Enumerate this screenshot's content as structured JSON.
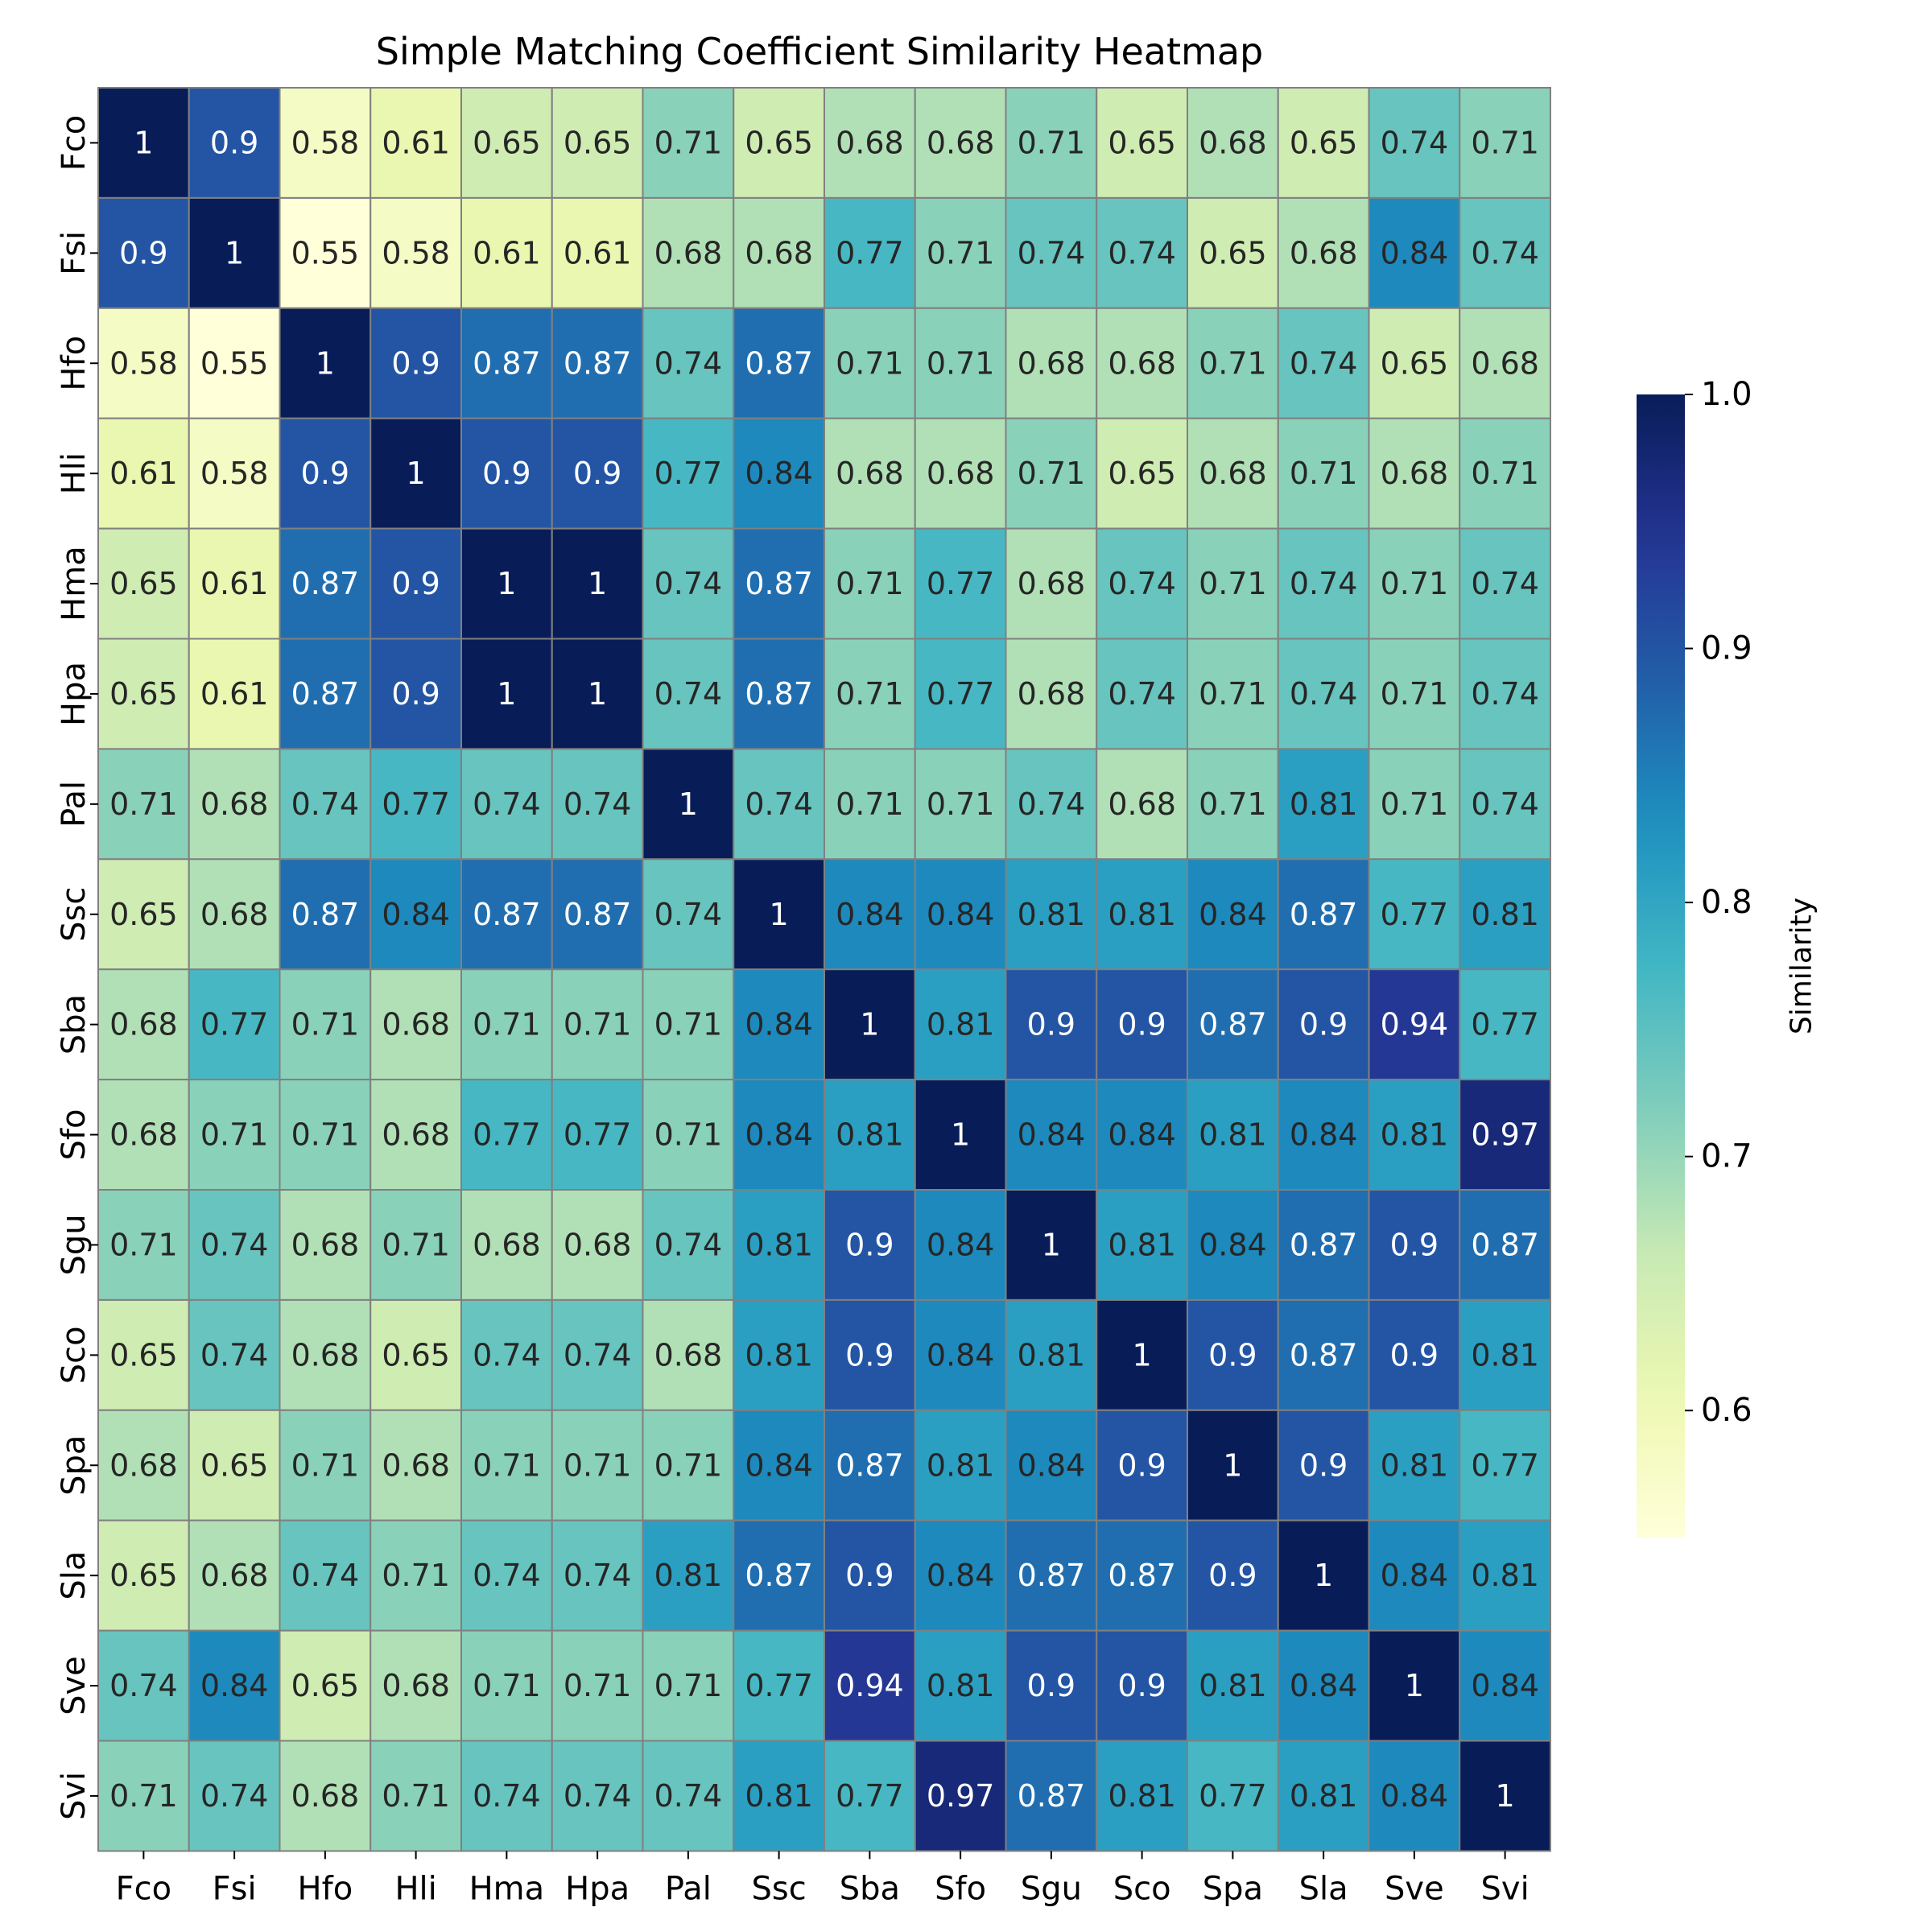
{
  "chart_data": {
    "type": "heatmap",
    "title": "Simple Matching Coefficient Similarity Heatmap",
    "xlabel": "",
    "ylabel": "",
    "x_categories": [
      "Fco",
      "Fsi",
      "Hfo",
      "Hli",
      "Hma",
      "Hpa",
      "Pal",
      "Ssc",
      "Sba",
      "Sfo",
      "Sgu",
      "Sco",
      "Spa",
      "Sla",
      "Sve",
      "Svi"
    ],
    "y_categories": [
      "Fco",
      "Fsi",
      "Hfo",
      "Hli",
      "Hma",
      "Hpa",
      "Pal",
      "Ssc",
      "Sba",
      "Sfo",
      "Sgu",
      "Sco",
      "Spa",
      "Sla",
      "Sve",
      "Svi"
    ],
    "values": [
      [
        1,
        0.9,
        0.58,
        0.61,
        0.65,
        0.65,
        0.71,
        0.65,
        0.68,
        0.68,
        0.71,
        0.65,
        0.68,
        0.65,
        0.74,
        0.71
      ],
      [
        0.9,
        1,
        0.55,
        0.58,
        0.61,
        0.61,
        0.68,
        0.68,
        0.77,
        0.71,
        0.74,
        0.74,
        0.65,
        0.68,
        0.84,
        0.74
      ],
      [
        0.58,
        0.55,
        1,
        0.9,
        0.87,
        0.87,
        0.74,
        0.87,
        0.71,
        0.71,
        0.68,
        0.68,
        0.71,
        0.74,
        0.65,
        0.68
      ],
      [
        0.61,
        0.58,
        0.9,
        1,
        0.9,
        0.9,
        0.77,
        0.84,
        0.68,
        0.68,
        0.71,
        0.65,
        0.68,
        0.71,
        0.68,
        0.71
      ],
      [
        0.65,
        0.61,
        0.87,
        0.9,
        1,
        1,
        0.74,
        0.87,
        0.71,
        0.77,
        0.68,
        0.74,
        0.71,
        0.74,
        0.71,
        0.74
      ],
      [
        0.65,
        0.61,
        0.87,
        0.9,
        1,
        1,
        0.74,
        0.87,
        0.71,
        0.77,
        0.68,
        0.74,
        0.71,
        0.74,
        0.71,
        0.74
      ],
      [
        0.71,
        0.68,
        0.74,
        0.77,
        0.74,
        0.74,
        1,
        0.74,
        0.71,
        0.71,
        0.74,
        0.68,
        0.71,
        0.81,
        0.71,
        0.74
      ],
      [
        0.65,
        0.68,
        0.87,
        0.84,
        0.87,
        0.87,
        0.74,
        1,
        0.84,
        0.84,
        0.81,
        0.81,
        0.84,
        0.87,
        0.77,
        0.81
      ],
      [
        0.68,
        0.77,
        0.71,
        0.68,
        0.71,
        0.71,
        0.71,
        0.84,
        1,
        0.81,
        0.9,
        0.9,
        0.87,
        0.9,
        0.94,
        0.77
      ],
      [
        0.68,
        0.71,
        0.71,
        0.68,
        0.77,
        0.77,
        0.71,
        0.84,
        0.81,
        1,
        0.84,
        0.84,
        0.81,
        0.84,
        0.81,
        0.97
      ],
      [
        0.71,
        0.74,
        0.68,
        0.71,
        0.68,
        0.68,
        0.74,
        0.81,
        0.9,
        0.84,
        1,
        0.81,
        0.84,
        0.87,
        0.9,
        0.87
      ],
      [
        0.65,
        0.74,
        0.68,
        0.65,
        0.74,
        0.74,
        0.68,
        0.81,
        0.9,
        0.84,
        0.81,
        1,
        0.9,
        0.87,
        0.9,
        0.81
      ],
      [
        0.68,
        0.65,
        0.71,
        0.68,
        0.71,
        0.71,
        0.71,
        0.84,
        0.87,
        0.81,
        0.84,
        0.9,
        1,
        0.9,
        0.81,
        0.77
      ],
      [
        0.65,
        0.68,
        0.74,
        0.71,
        0.74,
        0.74,
        0.81,
        0.87,
        0.9,
        0.84,
        0.87,
        0.87,
        0.9,
        1,
        0.84,
        0.81
      ],
      [
        0.74,
        0.84,
        0.65,
        0.68,
        0.71,
        0.71,
        0.71,
        0.77,
        0.94,
        0.81,
        0.9,
        0.9,
        0.81,
        0.84,
        1,
        0.84
      ],
      [
        0.71,
        0.74,
        0.68,
        0.71,
        0.74,
        0.74,
        0.74,
        0.81,
        0.77,
        0.97,
        0.87,
        0.81,
        0.77,
        0.81,
        0.84,
        1
      ]
    ],
    "colormap": "YlGnBu",
    "colorbar": {
      "label": "Similarity",
      "range": [
        0.55,
        1.0
      ],
      "ticks": [
        0.6,
        0.7,
        0.8,
        0.9,
        1.0
      ],
      "tick_labels": [
        "0.6",
        "0.7",
        "0.8",
        "0.9",
        "1.0"
      ]
    },
    "annotated": true,
    "cell_border_color": "#808080"
  }
}
